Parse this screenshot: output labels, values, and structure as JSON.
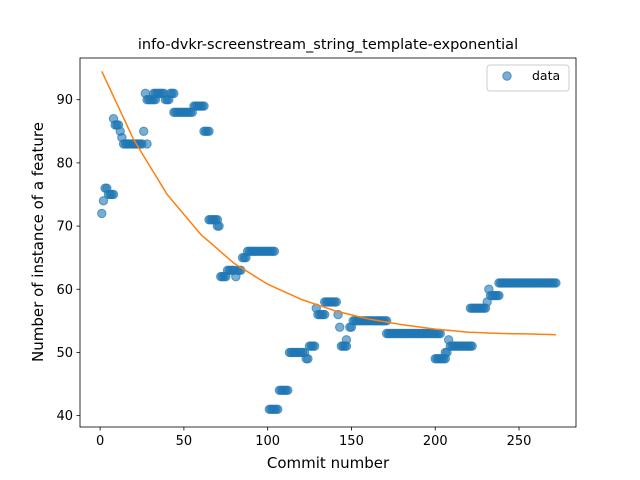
{
  "chart_data": {
    "type": "scatter",
    "title": "info-dvkr-screenstream_string_template-exponential",
    "xlabel": "Commit number",
    "ylabel": "Number of instance of a feature",
    "xlim": [
      -12,
      284
    ],
    "ylim": [
      38.2,
      96.6
    ],
    "xticks": [
      0,
      50,
      100,
      150,
      200,
      250
    ],
    "yticks": [
      40,
      50,
      60,
      70,
      80,
      90
    ],
    "legend": {
      "position": "top-right",
      "entries": [
        "data"
      ]
    },
    "grid": false,
    "colors": {
      "points": "#1f77b4",
      "fit": "#ff7f0e"
    },
    "series": [
      {
        "name": "data",
        "kind": "scatter",
        "runs": [
          [
            1,
            1,
            72
          ],
          [
            2,
            2,
            74
          ],
          [
            3,
            4,
            76
          ],
          [
            5,
            8,
            75
          ],
          [
            8,
            8,
            87
          ],
          [
            9,
            11,
            86
          ],
          [
            12,
            12,
            85
          ],
          [
            13,
            13,
            84
          ],
          [
            14,
            24,
            83
          ],
          [
            25,
            25,
            83
          ],
          [
            26,
            26,
            85
          ],
          [
            27,
            27,
            91
          ],
          [
            28,
            28,
            83
          ],
          [
            28,
            33,
            90
          ],
          [
            32,
            38,
            91
          ],
          [
            39,
            41,
            90
          ],
          [
            42,
            44,
            91
          ],
          [
            44,
            55,
            88
          ],
          [
            56,
            62,
            89
          ],
          [
            62,
            65,
            85
          ],
          [
            65,
            70,
            71
          ],
          [
            70,
            71,
            70
          ],
          [
            72,
            75,
            62
          ],
          [
            76,
            80,
            63
          ],
          [
            81,
            81,
            62
          ],
          [
            82,
            84,
            63
          ],
          [
            85,
            87,
            65
          ],
          [
            88,
            104,
            66
          ],
          [
            101,
            106,
            41
          ],
          [
            107,
            112,
            44
          ],
          [
            113,
            122,
            50
          ],
          [
            123,
            124,
            49
          ],
          [
            125,
            128,
            51
          ],
          [
            129,
            129,
            57
          ],
          [
            130,
            134,
            56
          ],
          [
            134,
            141,
            58
          ],
          [
            142,
            142,
            56
          ],
          [
            143,
            143,
            54
          ],
          [
            144,
            147,
            51
          ],
          [
            147,
            147,
            52
          ],
          [
            149,
            150,
            54
          ],
          [
            151,
            171,
            55
          ],
          [
            171,
            203,
            53
          ],
          [
            200,
            206,
            49
          ],
          [
            206,
            207,
            50
          ],
          [
            208,
            208,
            52
          ],
          [
            209,
            211,
            51
          ],
          [
            212,
            222,
            51
          ],
          [
            221,
            230,
            57
          ],
          [
            231,
            231,
            58
          ],
          [
            232,
            232,
            60
          ],
          [
            233,
            238,
            59
          ],
          [
            238,
            272,
            61
          ]
        ]
      },
      {
        "name": "fit",
        "kind": "line",
        "model": "exponential",
        "x": [
          1,
          20,
          40,
          60,
          80,
          100,
          120,
          140,
          160,
          180,
          200,
          220,
          240,
          260,
          272
        ],
        "y": [
          94.5,
          83.7,
          75.0,
          68.7,
          64.1,
          60.8,
          58.4,
          56.6,
          55.3,
          54.4,
          53.7,
          53.2,
          53.0,
          52.9,
          52.8
        ]
      }
    ]
  }
}
